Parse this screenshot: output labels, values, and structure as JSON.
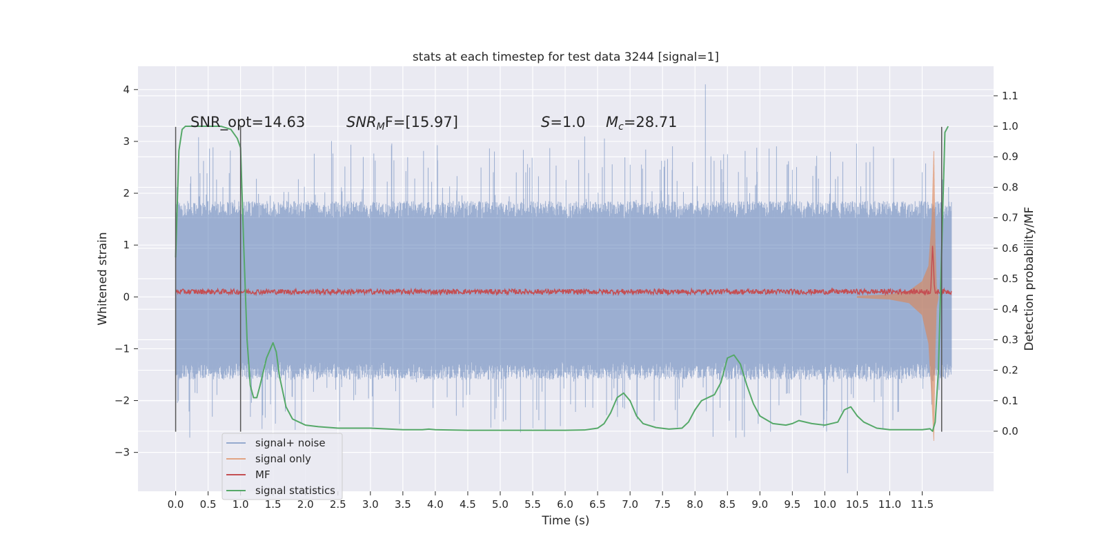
{
  "chart_data": {
    "type": "line",
    "title": "stats at each timestep for test data 3244 [signal=1]",
    "xlabel": "Time (s)",
    "ylabel": "Whitened strain",
    "ylabel_right": "Detection probability/MF",
    "xlim": [
      -0.58,
      12.6
    ],
    "ylim": [
      -3.75,
      4.45
    ],
    "ylim_right": [
      -0.197,
      1.197
    ],
    "xticks": [
      0.0,
      0.5,
      1.0,
      1.5,
      2.0,
      2.5,
      3.0,
      3.5,
      4.0,
      4.5,
      5.0,
      5.5,
      6.0,
      6.5,
      7.0,
      7.5,
      8.0,
      8.5,
      9.0,
      9.5,
      10.0,
      10.5,
      11.0,
      11.5
    ],
    "xtick_labels": [
      "0.0",
      "0.5",
      "1.0",
      "1.5",
      "2.0",
      "2.5",
      "3.0",
      "3.5",
      "4.0",
      "4.5",
      "5.0",
      "5.5",
      "6.0",
      "6.5",
      "7.0",
      "7.5",
      "8.0",
      "8.5",
      "9.0",
      "9.5",
      "10.0",
      "10.5",
      "11.0",
      "11.5"
    ],
    "yticks": [
      -3,
      -2,
      -1,
      0,
      1,
      2,
      3,
      4
    ],
    "ytick_labels": [
      "−3",
      "−2",
      "−1",
      "0",
      "1",
      "2",
      "3",
      "4"
    ],
    "yticks_right": [
      0.0,
      0.1,
      0.2,
      0.3,
      0.4,
      0.5,
      0.6,
      0.7,
      0.8,
      0.9,
      1.0,
      1.1
    ],
    "ytick_labels_right": [
      "0.0",
      "0.1",
      "0.2",
      "0.3",
      "0.4",
      "0.5",
      "0.6",
      "0.7",
      "0.8",
      "0.9",
      "1.0",
      "1.1"
    ],
    "grid": true,
    "legend_position": "lower-left",
    "annotations": {
      "snr_opt": "SNR_opt=14.63",
      "snr_mf_sym": "SNR",
      "snr_mf_sub": "M",
      "snr_mf_rest": "F=[15.97]",
      "s_sym": "S",
      "s_rest": "=1.0",
      "mc_sym": "M",
      "mc_sub": "c",
      "mc_rest": "=28.71"
    },
    "vertical_markers": [
      {
        "x": 0.0,
        "y_range": [
          -2.6,
          3.28
        ]
      },
      {
        "x": 1.0,
        "y_range": [
          -2.6,
          3.28
        ]
      },
      {
        "x": 11.8,
        "y_range": [
          -2.6,
          3.28
        ]
      }
    ],
    "series": [
      {
        "name": "signal+ noise",
        "color": "#4c72b0",
        "band_x": [
          0.0,
          11.6,
          11.68,
          11.72,
          11.8,
          11.95
        ],
        "band_upper": [
          1.5,
          1.5,
          1.45,
          1.5,
          1.5,
          1.5
        ],
        "band_lower": [
          -1.25,
          -1.25,
          -1.3,
          -1.25,
          -1.25,
          -1.2
        ],
        "max_spike": 4.1,
        "min_spike": -3.4,
        "x_range": [
          0.0,
          11.95
        ]
      },
      {
        "name": "signal only",
        "color": "#dd8452",
        "envelope_x": [
          10.5,
          11.0,
          11.3,
          11.5,
          11.6,
          11.65,
          11.68,
          11.7,
          11.72,
          11.75
        ],
        "envelope_upper": [
          0.02,
          0.05,
          0.12,
          0.3,
          0.6,
          1.5,
          2.85,
          1.0,
          0.2,
          0.0
        ],
        "envelope_lower": [
          -0.02,
          -0.05,
          -0.12,
          -0.35,
          -0.9,
          -2.0,
          -2.8,
          -1.0,
          -0.2,
          0.0
        ]
      },
      {
        "name": "MF",
        "color": "#c44e52",
        "base": 0.1,
        "noise": 0.05,
        "x_range": [
          0.0,
          11.95
        ],
        "peak_x": 11.66,
        "peak_y": 1.0
      },
      {
        "name": "signal statistics",
        "color": "#55a868",
        "axis": "right",
        "x": [
          0.0,
          0.05,
          0.1,
          0.15,
          0.2,
          0.3,
          0.5,
          0.7,
          0.85,
          0.95,
          1.0,
          1.05,
          1.1,
          1.15,
          1.2,
          1.25,
          1.3,
          1.4,
          1.5,
          1.55,
          1.6,
          1.7,
          1.8,
          1.9,
          2.0,
          2.2,
          2.5,
          3.0,
          3.5,
          3.8,
          3.9,
          4.0,
          4.5,
          5.0,
          5.5,
          6.0,
          6.3,
          6.5,
          6.6,
          6.7,
          6.8,
          6.9,
          7.0,
          7.1,
          7.2,
          7.4,
          7.6,
          7.8,
          7.9,
          8.0,
          8.1,
          8.2,
          8.3,
          8.4,
          8.5,
          8.6,
          8.7,
          8.8,
          8.9,
          9.0,
          9.2,
          9.4,
          9.5,
          9.6,
          9.8,
          10.0,
          10.2,
          10.3,
          10.4,
          10.5,
          10.6,
          10.8,
          11.0,
          11.5,
          11.62,
          11.66,
          11.7,
          11.75,
          11.82,
          11.85,
          11.9
        ],
        "y": [
          0.57,
          0.92,
          0.99,
          1.0,
          1.0,
          1.0,
          1.0,
          1.0,
          0.99,
          0.96,
          0.93,
          0.6,
          0.3,
          0.15,
          0.11,
          0.11,
          0.15,
          0.24,
          0.29,
          0.26,
          0.18,
          0.08,
          0.04,
          0.03,
          0.02,
          0.015,
          0.01,
          0.01,
          0.005,
          0.005,
          0.007,
          0.005,
          0.003,
          0.003,
          0.003,
          0.003,
          0.004,
          0.01,
          0.025,
          0.06,
          0.11,
          0.125,
          0.1,
          0.05,
          0.025,
          0.012,
          0.007,
          0.01,
          0.03,
          0.07,
          0.1,
          0.11,
          0.12,
          0.16,
          0.24,
          0.25,
          0.22,
          0.15,
          0.09,
          0.05,
          0.025,
          0.02,
          0.025,
          0.035,
          0.025,
          0.02,
          0.03,
          0.07,
          0.08,
          0.05,
          0.03,
          0.01,
          0.005,
          0.005,
          0.008,
          0.0,
          0.03,
          0.2,
          0.75,
          0.98,
          1.0
        ]
      }
    ]
  }
}
